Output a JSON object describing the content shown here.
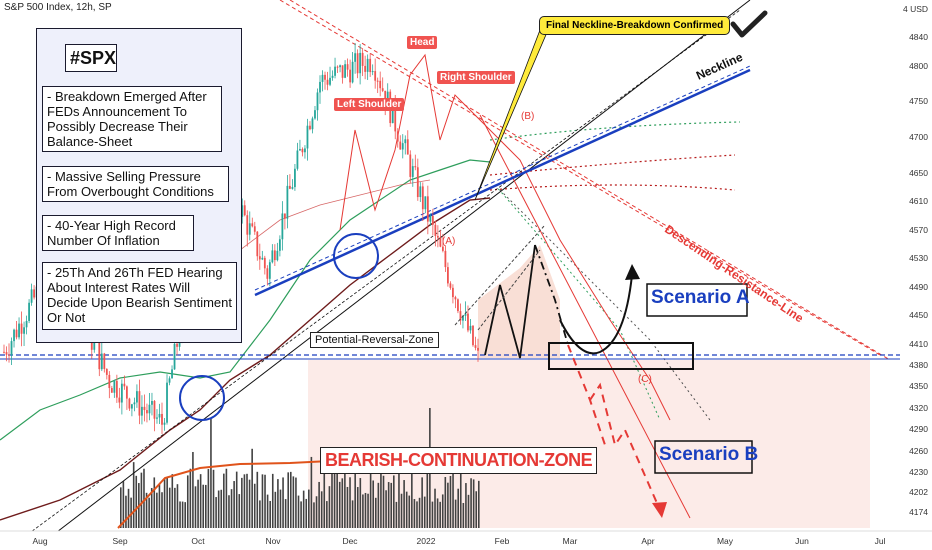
{
  "header": {
    "title": "S&P 500 Index, 12h, SP"
  },
  "price_scale": {
    "currency_label": "USD",
    "currency_prefix": "4"
  },
  "theme": {
    "blue": "#1a3fbf",
    "red": "#e53935",
    "dark_red": "#7b1a1a",
    "green": "#2e9e5c",
    "zone_fill": "#fbe4e0",
    "volume": "#424242",
    "volume_ma": "#e0531b",
    "callout_yellow": "#ffeb3b"
  },
  "notes": {
    "ticker": "#SPX",
    "points": [
      "- Breakdown Emerged After FEDs Announcement To Possibly Decrease Their Balance-Sheet",
      "- Massive Selling Pressure From Overbought Conditions",
      "- 40-Year High Record Number Of Inflation",
      "- 25Th And 26Th FED Hearing About Interest Rates Will Decide Upon Bearish Sentiment Or Not"
    ]
  },
  "annotations": {
    "head": "Head",
    "left_shoulder": "Left Shoulder",
    "right_shoulder": "Right Shoulder",
    "neckline": "Neckline",
    "callout": "Final Neckline-Breakdown Confirmed",
    "descending_resistance": "Descending-Resistance-Line",
    "potential_reversal_zone": "Potential-Reversal-Zone",
    "bearish_zone": "BEARISH-CONTINUATION-ZONE",
    "scenario_a": "Scenario A",
    "scenario_b": "Scenario B",
    "wave_a": "(A)",
    "wave_b": "(B)",
    "wave_c": "(C)",
    "checkmark": "checkmark-icon"
  },
  "chart_data": {
    "type": "candlestick",
    "title": "S&P 500 Index, 12h, SP",
    "y_ticks": [
      4840,
      4800,
      4750,
      4700,
      4650,
      4610,
      4570,
      4530,
      4490,
      4450,
      4410,
      4380,
      4350,
      4320,
      4290,
      4260,
      4230,
      4202,
      4174
    ],
    "x_ticks": [
      "Aug",
      "Sep",
      "Oct",
      "Nov",
      "Dec",
      "2022",
      "Feb",
      "Mar",
      "Apr",
      "May",
      "Jun",
      "Jul"
    ],
    "approx_closes": [
      {
        "date": "Aug",
        "close": 4400
      },
      {
        "date": "Sep",
        "close": 4530
      },
      {
        "date": "Sep (late)",
        "close": 4360
      },
      {
        "date": "Oct",
        "close": 4300
      },
      {
        "date": "Nov",
        "close": 4690
      },
      {
        "date": "Dec",
        "close": 4510
      },
      {
        "date": "Dec (late)",
        "close": 4780
      },
      {
        "date": "2022",
        "close": 4810
      },
      {
        "date": "Jan (mid)",
        "close": 4600
      },
      {
        "date": "Jan (late)",
        "close": 4390
      }
    ],
    "levels": {
      "support": 4380,
      "head_high": 4818
    }
  }
}
